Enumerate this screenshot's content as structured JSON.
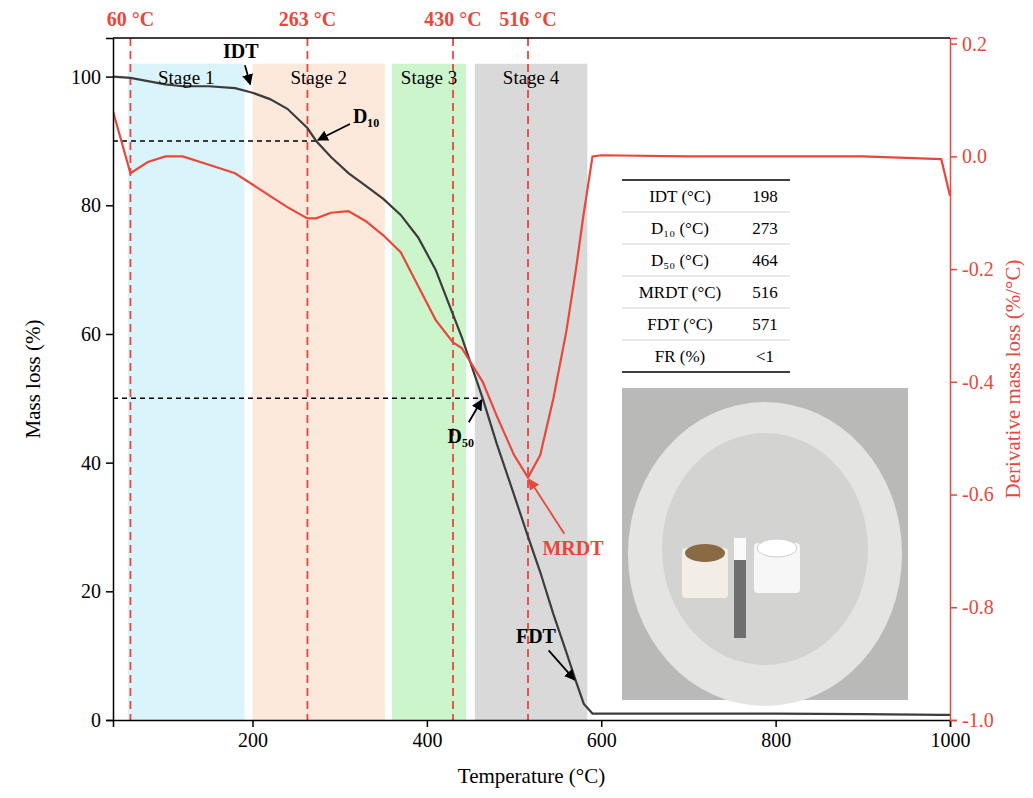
{
  "chart_data": {
    "type": "line",
    "x_label": "Temperature (°C)",
    "y_label": "Mass loss (%)",
    "y2_label": "Derivative mass loss (%/°C)",
    "x": [
      40,
      60,
      80,
      100,
      120,
      150,
      180,
      200,
      220,
      240,
      263,
      273,
      290,
      310,
      330,
      350,
      370,
      390,
      410,
      430,
      440,
      464,
      480,
      500,
      516,
      530,
      545,
      560,
      571,
      580,
      590,
      600,
      700,
      800,
      900,
      990,
      1000
    ],
    "series": [
      {
        "color": "#3c3c3c",
        "values": [
          100,
          99.8,
          99.3,
          98.8,
          98.5,
          98.5,
          98.2,
          97.5,
          96.5,
          95,
          92,
          90,
          87.5,
          85,
          83,
          81,
          78.5,
          75,
          70,
          63,
          59.5,
          50,
          43,
          35,
          28.5,
          23,
          16.5,
          10.5,
          6,
          2.5,
          1,
          1,
          1,
          1,
          0.9,
          0.8,
          0.8
        ]
      },
      {
        "color": "#e8473c",
        "axis": "y2",
        "values": [
          0.08,
          -0.03,
          -0.01,
          0,
          0,
          -0.015,
          -0.03,
          -0.05,
          -0.07,
          -0.09,
          -0.11,
          -0.11,
          -0.1,
          -0.097,
          -0.115,
          -0.14,
          -0.17,
          -0.23,
          -0.29,
          -0.33,
          -0.34,
          -0.4,
          -0.46,
          -0.53,
          -0.57,
          -0.53,
          -0.43,
          -0.31,
          -0.2,
          -0.1,
          0,
          0.002,
          0,
          0,
          0,
          -0.005,
          -0.07
        ]
      }
    ],
    "xlim": [
      40,
      1000
    ],
    "xticks": [
      200,
      400,
      600,
      800,
      1000
    ],
    "ylim": [
      0,
      106
    ],
    "yticks": [
      0,
      20,
      40,
      60,
      80,
      100
    ],
    "y2lim": [
      -1,
      0.21
    ],
    "y2ticks": [
      {
        "value": -1,
        "label": "-1.0"
      },
      -0.8,
      -0.6,
      -0.4,
      -0.2,
      {
        "value": 0,
        "label": "0.0"
      },
      0.2
    ],
    "stages": [
      {
        "label": "Stage 1",
        "range": [
          57,
          191
        ],
        "ymax": 102,
        "color": "#d9f4fa"
      },
      {
        "label": "Stage 2",
        "range": [
          200,
          352
        ],
        "ymax": 102,
        "color": "#fde9dc"
      },
      {
        "label": "Stage 3",
        "range": [
          360,
          445
        ],
        "ymax": 102,
        "color": "#ccf5cc"
      },
      {
        "label": "Stage 4",
        "range": [
          455,
          584
        ],
        "ymax": 102,
        "color": "#d9d9d9"
      }
    ],
    "vlines": [
      {
        "x": 60,
        "label": "60 °C",
        "color": "#e8473c"
      },
      {
        "x": 263,
        "label": "263 °C",
        "color": "#e8473c"
      },
      {
        "x": 430,
        "label": "430 °C",
        "color": "#e8473c"
      },
      {
        "x": 516,
        "label": "516 °C",
        "color": "#e8473c"
      }
    ],
    "annotations": [
      {
        "text": "IDT",
        "x": 198,
        "y": 98.5,
        "color": "#000000"
      },
      {
        "text": "D₁₀",
        "x": 273,
        "y": 90,
        "color": "#000000"
      },
      {
        "text": "D₅₀",
        "x": 464,
        "y": 50,
        "color": "#000000"
      },
      {
        "text": "MRDT",
        "x": 516,
        "y": -0.57,
        "axis": "y2",
        "color": "#e8473c"
      },
      {
        "text": "FDT",
        "x": 571,
        "y": 6,
        "color": "#000000"
      }
    ],
    "table": {
      "rows": [
        [
          "IDT (°C)",
          198
        ],
        [
          "D₁₀ (°C)",
          273
        ],
        [
          "D₅₀ (°C)",
          464
        ],
        [
          "MRDT (°C)",
          516
        ],
        [
          "FDT (°C)",
          571
        ],
        [
          "FR (%)",
          "<1"
        ]
      ]
    }
  }
}
